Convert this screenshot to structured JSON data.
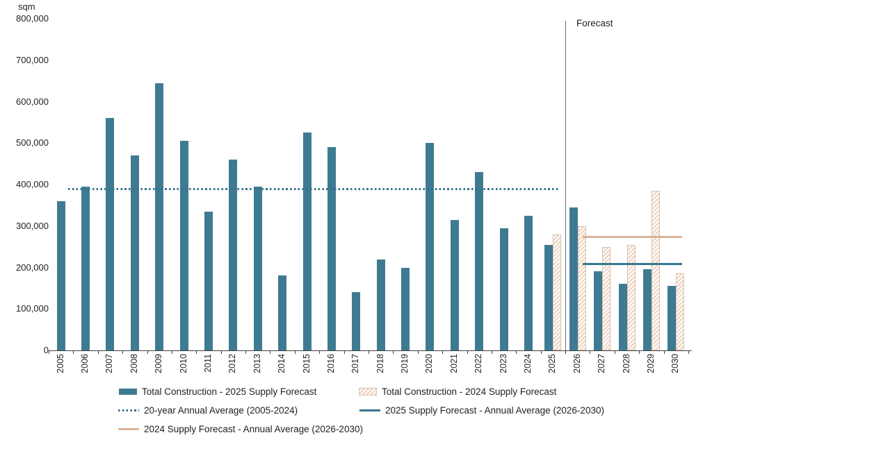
{
  "chart_data": {
    "type": "bar",
    "title": "",
    "ylabel": "sqm",
    "ylim": [
      0,
      800000
    ],
    "ytick_step": 100000,
    "ytick_labels": [
      "0",
      "100,000",
      "200,000",
      "300,000",
      "400,000",
      "500,000",
      "600,000",
      "700,000",
      "800,000"
    ],
    "grid": "off",
    "legend_position": "bottom",
    "categories": [
      "2005",
      "2006",
      "2007",
      "2008",
      "2009",
      "2010",
      "2011",
      "2012",
      "2013",
      "2014",
      "2015",
      "2016",
      "2017",
      "2018",
      "2019",
      "2020",
      "2021",
      "2022",
      "2023",
      "2024",
      "2025",
      "2026",
      "2027",
      "2028",
      "2029",
      "2030"
    ],
    "series": [
      {
        "name": "Total Construction - 2025 Supply Forecast",
        "values": [
          360000,
          395000,
          560000,
          470000,
          645000,
          505000,
          335000,
          460000,
          395000,
          180000,
          525000,
          490000,
          140000,
          220000,
          200000,
          500000,
          315000,
          430000,
          295000,
          325000,
          255000,
          345000,
          190000,
          160000,
          195000,
          155000
        ]
      },
      {
        "name": "Total Construction - 2024 Supply Forecast",
        "values": [
          null,
          null,
          null,
          null,
          null,
          null,
          null,
          null,
          null,
          null,
          null,
          null,
          null,
          null,
          null,
          null,
          null,
          null,
          null,
          null,
          280000,
          300000,
          250000,
          255000,
          385000,
          185000
        ]
      }
    ],
    "avg_lines": [
      {
        "name": "20-year Annual Average (2005-2024)",
        "value": 390000,
        "style": "dotted",
        "css": "dotted",
        "color": "#35718a",
        "span": [
          "2005",
          "2025"
        ]
      },
      {
        "name": "2025 Supply Forecast - Annual Average (2026-2030)",
        "value": 210000,
        "style": "solid",
        "css": "teal",
        "color": "#38758e",
        "span": [
          "2026",
          "2030"
        ]
      },
      {
        "name": "2024 Supply Forecast - Annual Average (2026-2030)",
        "value": 275000,
        "style": "solid",
        "css": "tan",
        "color": "#d9b49b",
        "span": [
          "2026",
          "2030"
        ]
      }
    ],
    "forecast_label": "Forecast",
    "forecast_divider_after": "2025",
    "colors": {
      "bar_2025": "#3e7b92",
      "hatch_stripe": "#e9cfbd",
      "hatch_border": "#ddc0ad",
      "avg_20yr": "#35718a",
      "avg_2025": "#38758e",
      "avg_2024": "#d9b49b",
      "axis": "#3f3f3f",
      "divider": "#6b6b6b",
      "text": "#1f1f1f"
    }
  },
  "legend": {
    "items": [
      {
        "label": "Total Construction - 2025 Supply Forecast"
      },
      {
        "label": "Total Construction - 2024 Supply Forecast"
      },
      {
        "label": "20-year Annual Average (2005-2024)"
      },
      {
        "label": "2025 Supply Forecast - Annual Average (2026-2030)"
      },
      {
        "label": "2024 Supply Forecast - Annual Average (2026-2030)"
      }
    ]
  }
}
